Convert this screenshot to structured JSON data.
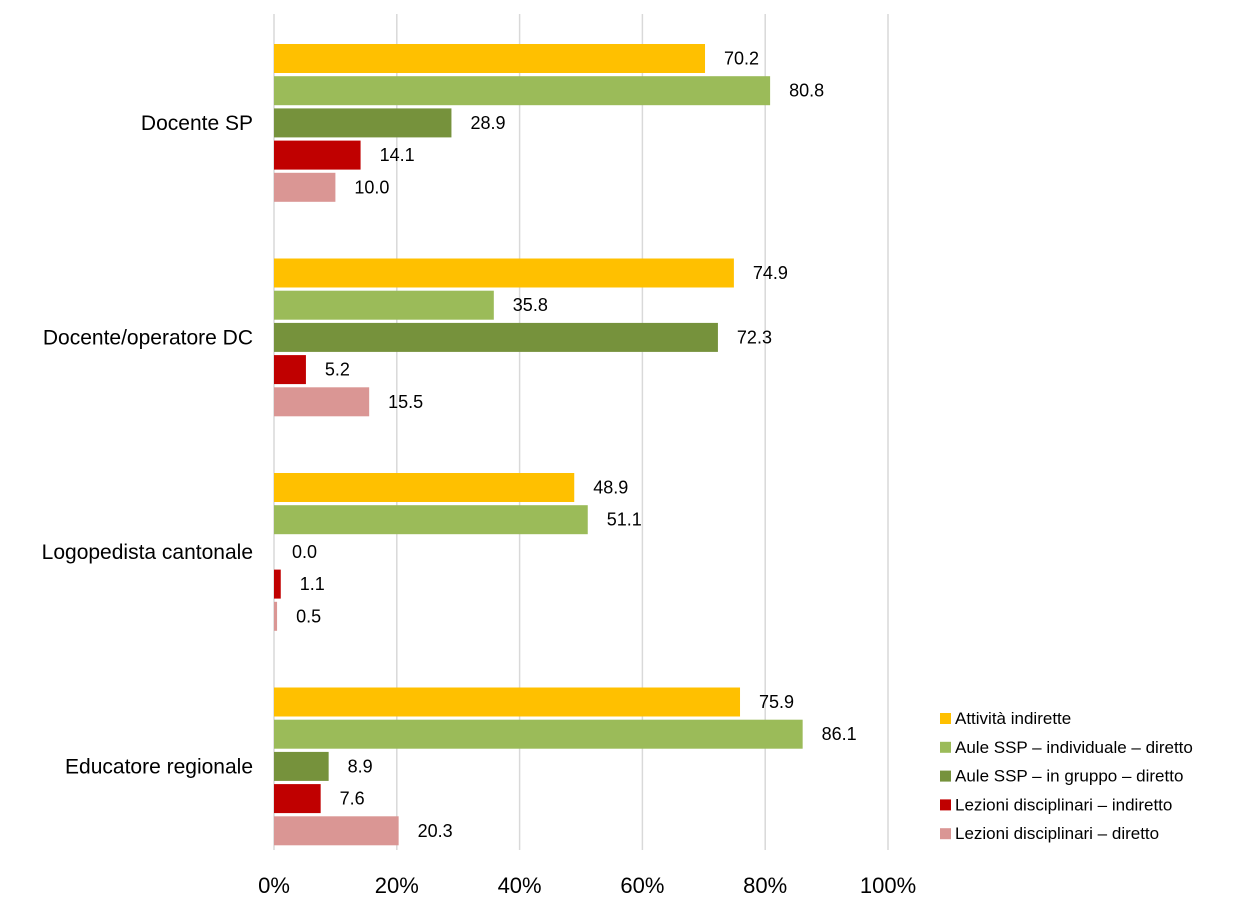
{
  "chart_data": {
    "type": "bar",
    "orientation": "horizontal",
    "categories": [
      "Docente SP",
      "Docente/operatore DC",
      "Logopedista cantonale",
      "Educatore regionale"
    ],
    "series": [
      {
        "name": "Attività indirette",
        "color": "#FFC000",
        "values": [
          70.2,
          74.9,
          48.9,
          75.9
        ],
        "labels": [
          "70.2",
          "74.9",
          "48.9",
          "75.9"
        ]
      },
      {
        "name": "Aule SSP – individuale – diretto",
        "color": "#9BBB59",
        "values": [
          80.8,
          35.8,
          51.1,
          86.1
        ],
        "labels": [
          "80.8",
          "35.8",
          "51.1",
          "86.1"
        ]
      },
      {
        "name": "Aule SSP – in gruppo – diretto",
        "color": "#76923C",
        "values": [
          28.9,
          72.3,
          0.0,
          8.9
        ],
        "labels": [
          "28.9",
          "72.3",
          "0.0",
          "8.9"
        ]
      },
      {
        "name": "Lezioni disciplinari – indiretto",
        "color": "#C00000",
        "values": [
          14.1,
          5.2,
          1.1,
          7.6
        ],
        "labels": [
          "14.1",
          "5.2",
          "1.1",
          "7.6"
        ]
      },
      {
        "name": "Lezioni disciplinari – diretto",
        "color": "#DA9694",
        "values": [
          10.0,
          15.5,
          0.5,
          20.3
        ],
        "labels": [
          "10.0",
          "15.5",
          "0.5",
          "20.3"
        ]
      }
    ],
    "xlim": [
      0,
      100
    ],
    "xticks": [
      "0%",
      "20%",
      "40%",
      "60%",
      "80%",
      "100%"
    ],
    "grid": true,
    "gridColor": "#D9D9D9",
    "legend": "bottom-right",
    "title": "",
    "xlabel": "",
    "ylabel": ""
  }
}
